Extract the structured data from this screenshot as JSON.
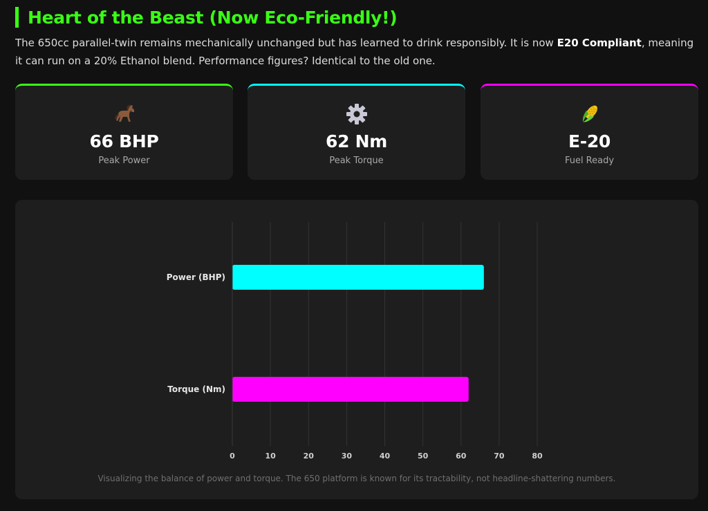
{
  "header": {
    "title": "Heart of the Beast (Now Eco-Friendly!)",
    "intro_before": "The 650cc parallel-twin remains mechanically unchanged but has learned to drink responsibly. It is now ",
    "intro_bold": "E20 Compliant",
    "intro_after": ", meaning it can run on a 20% Ethanol blend. Performance figures? Identical to the old one."
  },
  "stats": [
    {
      "icon": "horse-icon",
      "value": "66 BHP",
      "label": "Peak Power",
      "accent": "#39ff14"
    },
    {
      "icon": "gear-icon",
      "value": "62 Nm",
      "label": "Peak Torque",
      "accent": "#00ffff"
    },
    {
      "icon": "corn-icon",
      "value": "E-20",
      "label": "Fuel Ready",
      "accent": "#ff00ff"
    }
  ],
  "chart_data": {
    "type": "bar",
    "orientation": "horizontal",
    "categories": [
      "Power (BHP)",
      "Torque (Nm)"
    ],
    "values": [
      66,
      62
    ],
    "colors": [
      "#00ffff",
      "#ff00ff"
    ],
    "xlim": [
      0,
      80
    ],
    "xticks": [
      "0",
      "10",
      "20",
      "30",
      "40",
      "50",
      "60",
      "70",
      "80"
    ],
    "grid": true
  },
  "caption": "Visualizing the balance of power and torque. The 650 platform is known for its tractability, not headline-shattering numbers."
}
